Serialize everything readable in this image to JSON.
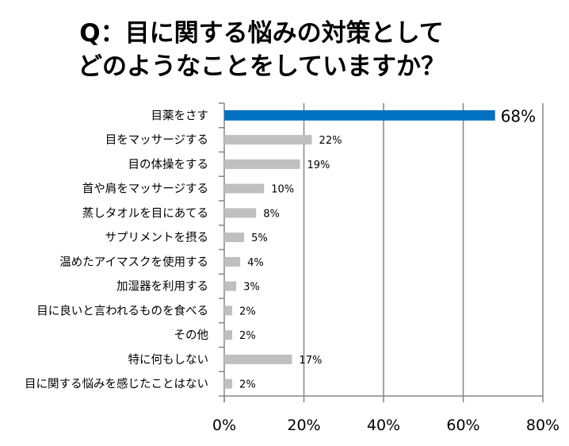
{
  "chart_data": {
    "type": "bar",
    "orientation": "horizontal",
    "title_lines": [
      "Q：目に関する悩みの対策として",
      "どのようなことをしていますか？"
    ],
    "categories": [
      "目薬をさす",
      "目をマッサージする",
      "目の体操をする",
      "首や肩をマッサージする",
      "蒸しタオルを目にあてる",
      "サプリメントを摂る",
      "温めたアイマスクを使用する",
      "加湿器を利用する",
      "目に良いと言われるものを食べる",
      "その他",
      "特に何もしない",
      "目に関する悩みを感じたことはない"
    ],
    "values": [
      68,
      22,
      19,
      10,
      8,
      5,
      4,
      3,
      2,
      2,
      17,
      2
    ],
    "data_labels": [
      "68%",
      "22%",
      "19%",
      "10%",
      "8%",
      "5%",
      "4%",
      "3%",
      "2%",
      "2%",
      "17%",
      "2%"
    ],
    "xlim": [
      0,
      80
    ],
    "x_ticks": [
      "0%",
      "20%",
      "40%",
      "60%",
      "80%"
    ],
    "grid": "vertical",
    "legend": "none",
    "colors": {
      "highlight": "#0070C0",
      "default": "#BFBFBF",
      "grid": "#868686"
    }
  }
}
